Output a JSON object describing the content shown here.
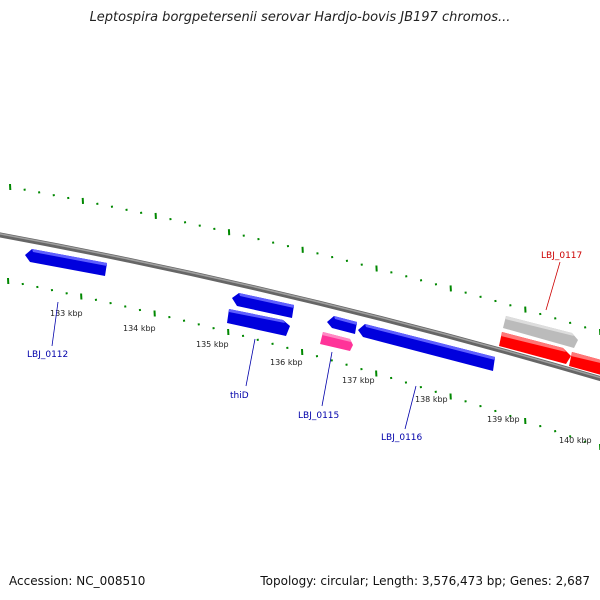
{
  "title": "Leptospira borgpetersenii serovar Hardjo-bovis JB197 chromos...",
  "footer": {
    "accession": "Accession: NC_008510",
    "summary": "Topology: circular; Length: 3,576,473 bp; Genes: 2,687"
  },
  "scale": {
    "ticks": [
      "133 kbp",
      "134 kbp",
      "135 kbp",
      "136 kbp",
      "137 kbp",
      "138 kbp",
      "139 kbp",
      "140 kbp"
    ]
  },
  "genes": [
    {
      "label": "LBJ_0112",
      "color": "#0000dd",
      "strand": "reverse"
    },
    {
      "label": "",
      "color": "#0000dd",
      "strand": "reverse"
    },
    {
      "label": "thiD",
      "color": "#0000dd",
      "strand": "forward"
    },
    {
      "label": "",
      "color": "#0000dd",
      "strand": "reverse"
    },
    {
      "label": "LBJ_0115",
      "color": "#ff3399",
      "strand": "forward"
    },
    {
      "label": "LBJ_0116",
      "color": "#0000dd",
      "strand": "reverse"
    },
    {
      "label": "",
      "color": "#bbbbbb",
      "strand": "forward"
    },
    {
      "label": "LBJ_0117",
      "color": "#ff0000",
      "strand": "forward"
    },
    {
      "label": "",
      "color": "#ff0000",
      "strand": "forward"
    }
  ],
  "colors": {
    "backbone": "#7a7a7a",
    "tick_marks": "#008800",
    "scale_text": "#222222",
    "label_blue": "#0000aa",
    "label_red": "#cc0000"
  }
}
